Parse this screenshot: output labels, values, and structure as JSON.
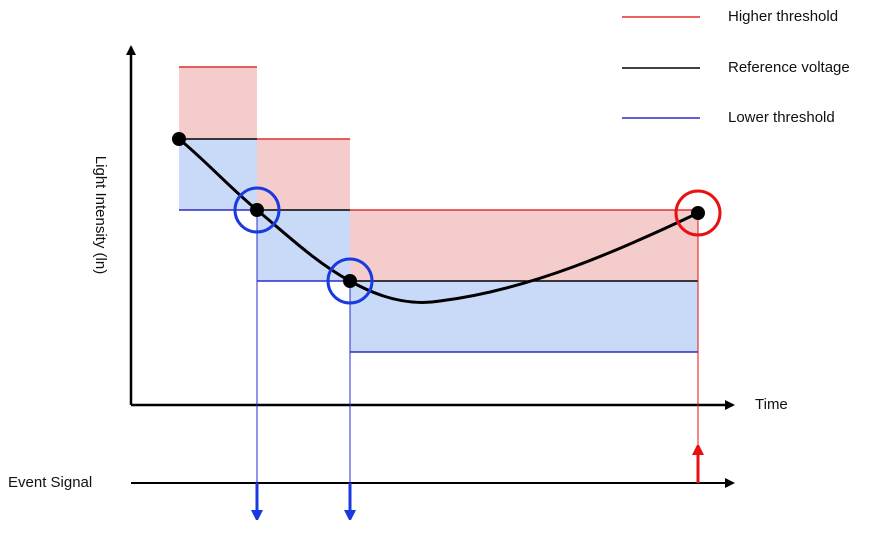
{
  "legend": [
    {
      "label": "Higher threshold"
    },
    {
      "label": "Reference voltage"
    },
    {
      "label": "Lower threshold"
    }
  ],
  "axes": {
    "y_label": "Light Intensity (ln)",
    "x_label": "Time"
  },
  "event_label": "Event Signal"
}
